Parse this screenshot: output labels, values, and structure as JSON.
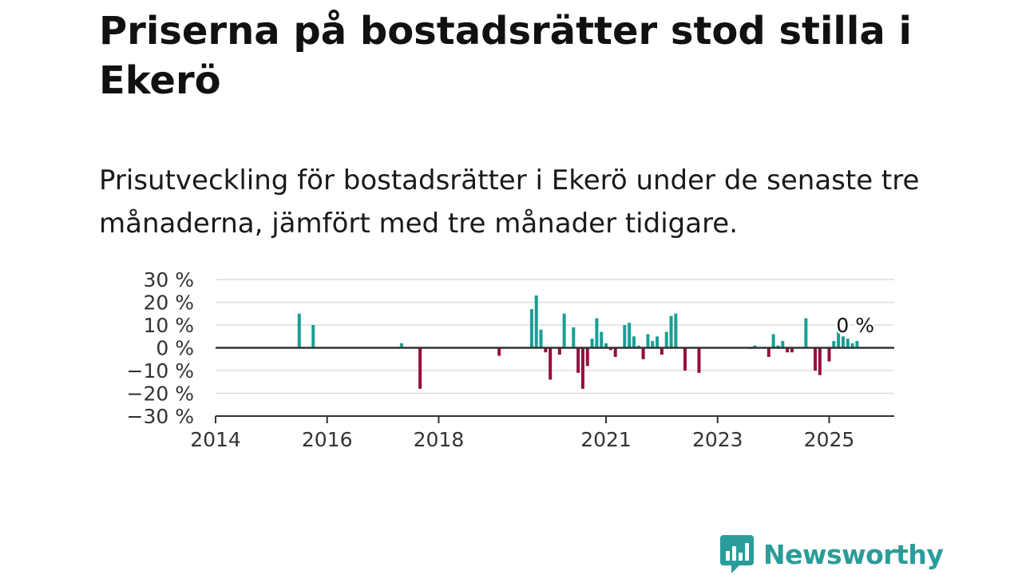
{
  "title": "Priserna på bostadsrätter stod stilla i Ekerö",
  "subtitle": "Prisutveckling för bostadsrätter i Ekerö under de senaste tre månaderna, jämfört med tre månader tidigare.",
  "brand": {
    "name": "Newsworthy",
    "icon": "newsworthy-logo-icon",
    "color": "#2a9d9a"
  },
  "chart_data": {
    "type": "bar",
    "title": "",
    "xlabel": "",
    "ylabel": "",
    "ylim": [
      -30,
      30
    ],
    "xlim": [
      "2014-01",
      "2026-03"
    ],
    "grid": true,
    "legend": "none",
    "yticks": [
      30,
      20,
      10,
      0,
      -10,
      -20,
      -30
    ],
    "ytick_labels": [
      "30 %",
      "20 %",
      "10 %",
      "0 %",
      "−10 %",
      "−20 %",
      "−30 %"
    ],
    "xticks": [
      "2014-01",
      "2016-01",
      "2018-01",
      "2021-01",
      "2023-01",
      "2025-01"
    ],
    "xtick_labels": [
      "2014",
      "2016",
      "2018",
      "2021",
      "2023",
      "2025"
    ],
    "colors": {
      "positive": "#1a9e96",
      "negative": "#990b3f",
      "grid": "#dddddd",
      "axis": "#333333"
    },
    "latest_label": "0 %",
    "points": [
      {
        "month": "2015-07",
        "value": 15
      },
      {
        "month": "2015-10",
        "value": 10
      },
      {
        "month": "2017-05",
        "value": 2
      },
      {
        "month": "2017-09",
        "value": -18
      },
      {
        "month": "2019-02",
        "value": -3.5
      },
      {
        "month": "2019-09",
        "value": 17
      },
      {
        "month": "2019-10",
        "value": 23
      },
      {
        "month": "2019-11",
        "value": 8
      },
      {
        "month": "2019-12",
        "value": -2
      },
      {
        "month": "2020-01",
        "value": -14
      },
      {
        "month": "2020-03",
        "value": -3
      },
      {
        "month": "2020-04",
        "value": 15
      },
      {
        "month": "2020-06",
        "value": 9
      },
      {
        "month": "2020-07",
        "value": -11
      },
      {
        "month": "2020-08",
        "value": -18
      },
      {
        "month": "2020-09",
        "value": -8
      },
      {
        "month": "2020-10",
        "value": 4
      },
      {
        "month": "2020-11",
        "value": 13
      },
      {
        "month": "2020-12",
        "value": 7
      },
      {
        "month": "2021-01",
        "value": 2
      },
      {
        "month": "2021-02",
        "value": -1
      },
      {
        "month": "2021-03",
        "value": -4
      },
      {
        "month": "2021-05",
        "value": 10
      },
      {
        "month": "2021-06",
        "value": 11
      },
      {
        "month": "2021-07",
        "value": 5
      },
      {
        "month": "2021-08",
        "value": 1
      },
      {
        "month": "2021-09",
        "value": -5
      },
      {
        "month": "2021-10",
        "value": 6
      },
      {
        "month": "2021-11",
        "value": 3
      },
      {
        "month": "2021-12",
        "value": 5
      },
      {
        "month": "2022-01",
        "value": -3
      },
      {
        "month": "2022-02",
        "value": 7
      },
      {
        "month": "2022-03",
        "value": 14
      },
      {
        "month": "2022-04",
        "value": 15
      },
      {
        "month": "2022-06",
        "value": -10
      },
      {
        "month": "2022-09",
        "value": -11
      },
      {
        "month": "2023-08",
        "value": -0.5
      },
      {
        "month": "2023-09",
        "value": 1
      },
      {
        "month": "2023-12",
        "value": -4
      },
      {
        "month": "2024-01",
        "value": 6
      },
      {
        "month": "2024-02",
        "value": 1
      },
      {
        "month": "2024-03",
        "value": 3
      },
      {
        "month": "2024-04",
        "value": -2
      },
      {
        "month": "2024-05",
        "value": -2
      },
      {
        "month": "2024-08",
        "value": 13
      },
      {
        "month": "2024-10",
        "value": -10
      },
      {
        "month": "2024-11",
        "value": -12
      },
      {
        "month": "2025-01",
        "value": -6
      },
      {
        "month": "2025-02",
        "value": 3
      },
      {
        "month": "2025-03",
        "value": 10
      },
      {
        "month": "2025-04",
        "value": 5
      },
      {
        "month": "2025-05",
        "value": 4
      },
      {
        "month": "2025-06",
        "value": 2
      },
      {
        "month": "2025-07",
        "value": 3
      }
    ]
  }
}
